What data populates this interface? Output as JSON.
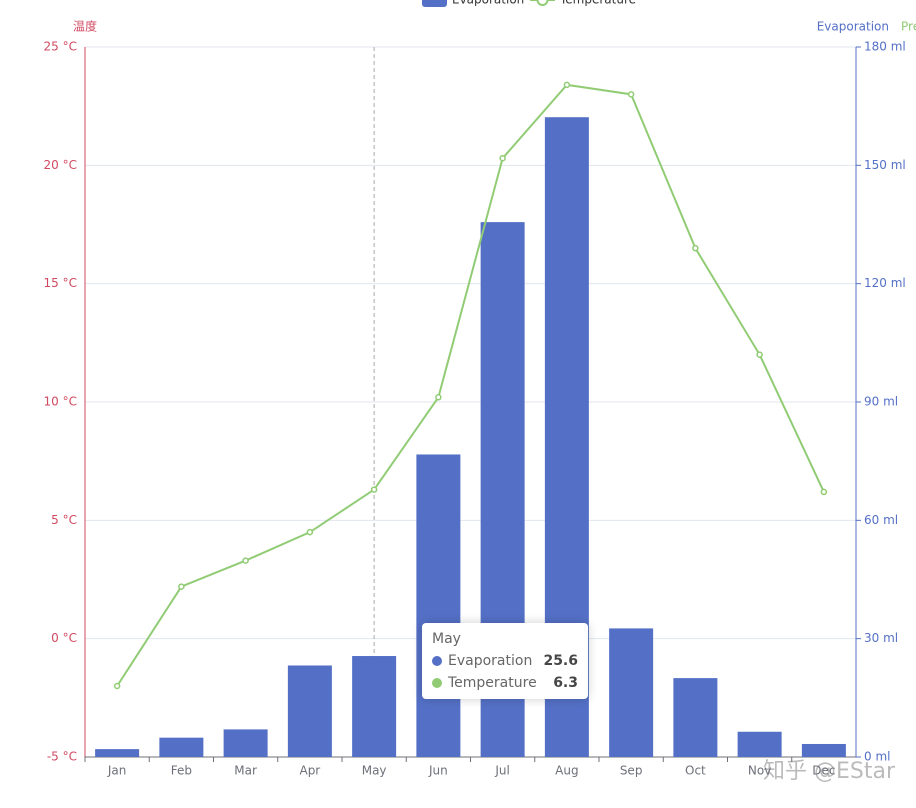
{
  "chart_data": {
    "type": "bar-line",
    "categories": [
      "Jan",
      "Feb",
      "Mar",
      "Apr",
      "May",
      "Jun",
      "Jul",
      "Aug",
      "Sep",
      "Oct",
      "Nov",
      "Dec"
    ],
    "series": [
      {
        "name": "Evaporation",
        "type": "bar",
        "axis": "y2",
        "color": "#5470c6",
        "values": [
          2.0,
          4.9,
          7.0,
          23.2,
          25.6,
          76.7,
          135.6,
          162.2,
          32.6,
          20.0,
          6.4,
          3.3
        ]
      },
      {
        "name": "Temperature",
        "type": "line",
        "axis": "y",
        "color": "#91cc75",
        "values": [
          -2.0,
          2.2,
          3.3,
          4.5,
          6.3,
          10.2,
          20.3,
          23.4,
          23.0,
          16.5,
          12.0,
          6.2
        ]
      }
    ],
    "ylabel": "温度",
    "y2label": "Evaporation",
    "y3label": "Pre",
    "ylim": [
      -5,
      25
    ],
    "yticks": [
      {
        "value": -5,
        "label": "-5 °C"
      },
      {
        "value": 0,
        "label": "0 °C"
      },
      {
        "value": 5,
        "label": "5 °C"
      },
      {
        "value": 10,
        "label": "10 °C"
      },
      {
        "value": 15,
        "label": "15 °C"
      },
      {
        "value": 20,
        "label": "20 °C"
      },
      {
        "value": 25,
        "label": "25 °C"
      }
    ],
    "y2lim": [
      0,
      180
    ],
    "y2ticks": [
      {
        "value": 0,
        "label": "0 ml"
      },
      {
        "value": 30,
        "label": "30 ml"
      },
      {
        "value": 60,
        "label": "60 ml"
      },
      {
        "value": 90,
        "label": "90 ml"
      },
      {
        "value": 120,
        "label": "120 ml"
      },
      {
        "value": 150,
        "label": "150 ml"
      },
      {
        "value": 180,
        "label": "180 ml"
      }
    ],
    "grid": true,
    "legend": "top",
    "watermark": "知乎 @EStar"
  }
}
